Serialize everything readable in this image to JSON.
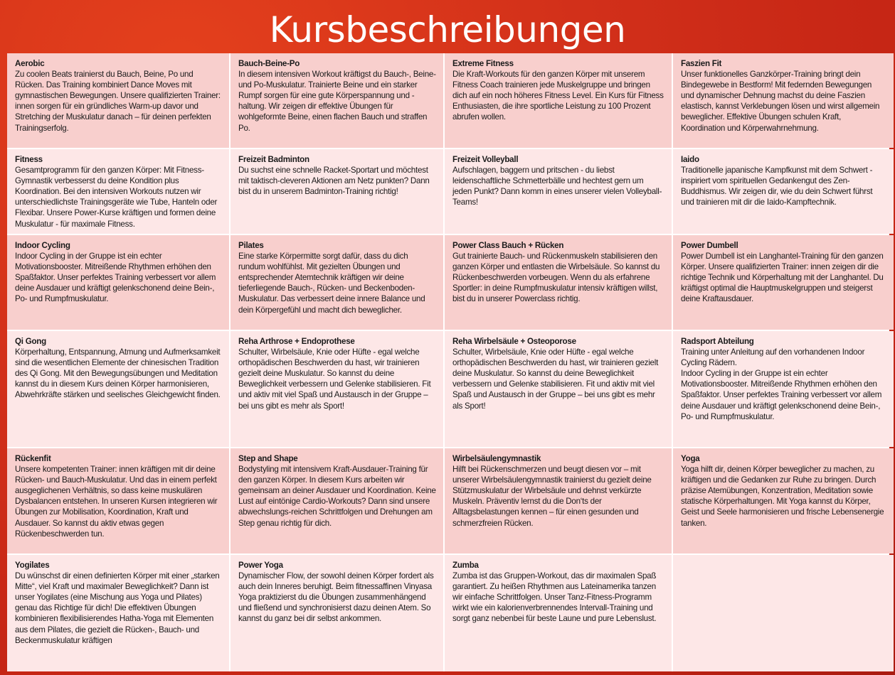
{
  "title": "Kursbeschreibungen",
  "colors": {
    "background": "#d2301a",
    "row_dark": "#f8cfcd",
    "row_light": "#fde7e7",
    "title": "#ffffff"
  },
  "courses": [
    {
      "name": "Aerobic",
      "description": "Zu coolen Beats trainierst du Bauch, Beine, Po und Rücken. Das Training kombiniert Dance Moves mit gymnastischen Bewegungen. Unsere qualifizierten Trainer: innen sorgen für ein gründliches Warm-up davor und Stretching der Muskulatur danach – für deinen perfekten Trainingserfolg."
    },
    {
      "name": "Bauch-Beine-Po",
      "description": "In diesem intensiven Workout kräftigst du Bauch-, Beine- und Po-Muskulatur. Trainierte Beine und ein starker Rumpf sorgen für eine gute Körperspannung und -haltung. Wir zeigen dir effektive Übungen für wohlgeformte Beine, einen flachen Bauch und straffen Po."
    },
    {
      "name": "Extreme Fitness",
      "description": "Die Kraft-Workouts für den ganzen Körper mit unserem Fitness Coach trainieren jede Muskelgruppe und bringen dich auf ein noch höheres Fitness Level. Ein Kurs für Fitness Enthusiasten, die ihre sportliche Leistung zu 100 Prozent abrufen wollen."
    },
    {
      "name": "Faszien Fit",
      "description": "Unser funktionelles Ganzkörper-Training bringt dein Bindegewebe in Bestform! Mit federnden Bewegungen und dynamischer Dehnung machst du deine Faszien elastisch, kannst Verklebungen lösen und wirst allgemein beweglicher. Effektive Übungen schulen Kraft, Koordination und Körperwahrnehmung."
    },
    {
      "name": "Fitness",
      "description": "Gesamtprogramm für den ganzen Körper: Mit Fitness-Gymnastik verbesserst du deine Kondition plus Koordination. Bei den intensiven Workouts nutzen wir unterschiedlichste Trainingsgeräte wie Tube, Hanteln oder Flexibar. Unsere Power-Kurse kräftigen und formen deine Muskulatur - für maximale Fitness."
    },
    {
      "name": "Freizeit Badminton",
      "description": "Du suchst eine schnelle Racket-Sportart und möchtest mit taktisch-cleveren Aktionen am Netz punkten? Dann bist du in unserem Badminton-Training richtig!"
    },
    {
      "name": "Freizeit Volleyball",
      "description": "Aufschlagen, baggern und pritschen - du liebst leidenschaftliche Schmetterbälle und hechtest gern um jeden Punkt? Dann komm in eines unserer vielen Volleyball-Teams!"
    },
    {
      "name": "Iaido",
      "description": "Traditionelle japanische Kampfkunst mit dem Schwert - inspiriert vom spirituellen Gedankengut des Zen-Buddhismus. Wir zeigen dir, wie du dein Schwert führst und trainieren mit dir die Iaido-Kampftechnik."
    },
    {
      "name": "Indoor Cycling",
      "description": "Indoor Cycling in der Gruppe ist ein echter Motivationsbooster. Mitreißende Rhythmen erhöhen den Spaßfaktor. Unser perfektes Training verbessert vor allem deine Ausdauer und kräftigt gelenkschonend deine Bein-, Po- und Rumpfmuskulatur."
    },
    {
      "name": "Pilates",
      "description": "Eine starke Körpermitte sorgt dafür, dass du dich rundum wohlfühlst. Mit gezielten Übungen und entsprechender Atemtechnik kräftigen wir deine tieferliegende Bauch-, Rücken- und Beckenboden-Muskulatur. Das verbessert  deine innere Balance und dein Körpergefühl und macht dich beweglicher."
    },
    {
      "name": "Power Class Bauch + Rücken",
      "description": "Gut trainierte Bauch- und Rückenmuskeln stabilisieren den ganzen Körper und entlasten die Wirbelsäule. So kannst du Rückenbeschwerden vorbeugen. Wenn du als erfahrene Sportler: in deine Rumpfmuskulatur intensiv kräftigen willst, bist du in unserer Powerclass richtig."
    },
    {
      "name": "Power Dumbell",
      "description": "Power Dumbell ist ein Langhantel-Training für den ganzen Körper. Unsere qualifizierten Trainer: innen zeigen dir die richtige Technik und Körperhaltung mit der Langhantel. Du kräftigst optimal die Hauptmuskelgruppen und steigerst deine Kraftausdauer."
    },
    {
      "name": "Qi Gong",
      "description": "Körperhaltung, Entspannung, Atmung und Aufmerksamkeit sind die wesentlichen Elemente der chinesischen Tradition des Qi Gong. Mit den Bewegungsübungen und Meditation kannst du in diesem Kurs deinen Körper harmonisieren, Abwehrkräfte stärken und seelisches Gleichgewicht finden."
    },
    {
      "name": "Reha Arthrose + Endoprothese",
      "description": "Schulter, Wirbelsäule, Knie oder Hüfte - egal welche orthopädischen Beschwerden du hast, wir trainieren gezielt deine Muskulatur. So kannst du deine Beweglichkeit verbessern und Gelenke stabilisieren. Fit und aktiv mit viel Spaß und Austausch in der Gruppe – bei uns gibt es mehr als Sport!"
    },
    {
      "name": "Reha Wirbelsäule + Osteoporose",
      "description": "Schulter, Wirbelsäule, Knie oder Hüfte - egal welche orthopädischen Beschwerden du hast, wir trainieren gezielt deine Muskulatur. So kannst du deine Beweglichkeit verbessern und Gelenke stabilisieren. Fit und aktiv mit viel Spaß und Austausch in der Gruppe – bei uns gibt es mehr als Sport!"
    },
    {
      "name": "Radsport Abteilung",
      "description": "Training unter Anleitung auf den vorhandenen Indoor Cycling Rädern.\nIndoor Cycling in der Gruppe ist ein echter Motivationsbooster. Mitreißende Rhythmen erhöhen den Spaßfaktor. Unser perfektes Training verbessert vor allem deine Ausdauer und kräftigt gelenkschonend deine Bein-, Po- und Rumpfmuskulatur."
    },
    {
      "name": "Rückenfit",
      "description": "Unsere kompetenten Trainer: innen kräftigen mit dir deine Rücken- und Bauch-Muskulatur. Und das in einem perfekt ausgeglichenen Verhältnis, so dass keine muskulären Dysbalancen entstehen. In unseren Kursen integrieren wir Übungen zur Mobilisation, Koordination, Kraft und Ausdauer. So kannst du aktiv etwas gegen Rückenbeschwerden tun."
    },
    {
      "name": "Step and Shape",
      "description": "Bodystyling mit intensivem Kraft-Ausdauer-Training für den ganzen Körper. In diesem Kurs arbeiten wir gemeinsam an deiner Ausdauer und Koordination. Keine Lust auf eintönige Cardio-Workouts? Dann sind unsere abwechslungs-reichen Schrittfolgen und Drehungen am Step genau richtig für dich."
    },
    {
      "name": "Wirbelsäulengymnastik",
      "description": "Hilft bei Rückenschmerzen und beugt diesen vor – mit unserer Wirbelsäulengymnastik trainierst du gezielt deine Stützmuskulatur der Wirbelsäule und dehnst verkürzte Muskeln. Präventiv lernst du die Don‘ts der Alltagsbelastungen kennen – für einen gesunden und schmerzfreien Rücken."
    },
    {
      "name": "Yoga",
      "description": "Yoga hilft dir, deinen Körper beweglicher zu machen, zu kräftigen und die Gedanken zur Ruhe zu bringen. Durch präzise Atemübungen, Konzentration, Meditation sowie statische Körperhaltungen. Mit Yoga kannst du Körper, Geist und Seele harmonisieren und frische Lebensenergie tanken."
    },
    {
      "name": "Yogilates",
      "description": "Du wünschst dir einen definierten Körper mit einer „starken Mitte“, viel Kraft und maximaler Beweglichkeit? Dann ist unser Yogilates (eine Mischung aus Yoga und Pilates) genau das Richtige für dich! Die effektiven Übungen kombinieren flexibilisierendes Hatha-Yoga mit Elementen aus dem Pilates, die gezielt die Rücken-, Bauch- und Beckenmuskulatur kräftigen"
    },
    {
      "name": "Power Yoga",
      "description": "Dynamischer Flow, der sowohl deinen Körper fordert als auch dein Inneres beruhigt. Beim fitnessaffinen Vinyasa Yoga praktizierst du die Übungen zusammenhängend und fließend und synchronisierst dazu deinen Atem. So kannst du ganz bei dir selbst ankommen."
    },
    {
      "name": "Zumba",
      "description": "Zumba ist das Gruppen-Workout, das dir maximalen Spaß garantiert. Zu heißen Rhythmen aus Lateinamerika tanzen wir einfache Schrittfolgen. Unser Tanz-Fitness-Programm wirkt wie ein kalorienverbrennendes Intervall-Training und sorgt ganz nebenbei für beste Laune und pure Lebenslust."
    }
  ]
}
